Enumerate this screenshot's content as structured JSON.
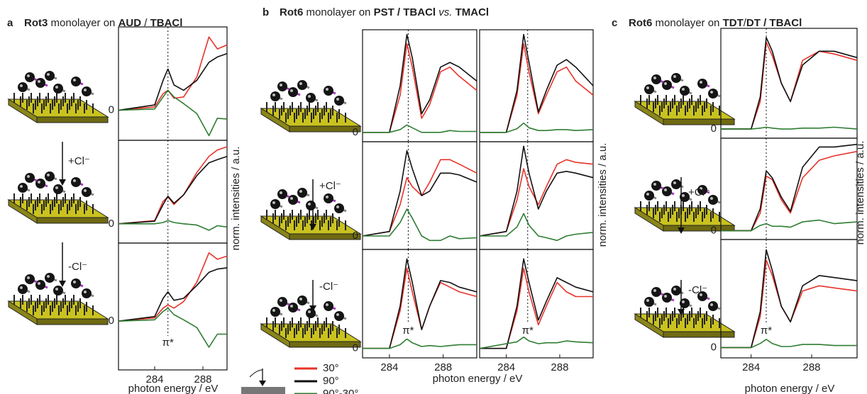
{
  "panels": [
    {
      "label": "a",
      "title": [
        {
          "text": "Rot3",
          "bold": true
        },
        {
          "text": " monolayer on ",
          "bold": false
        },
        {
          "text": "AUD",
          "bold": true
        },
        {
          "text": " / ",
          "bold": false
        },
        {
          "text": "TBACl",
          "bold": true
        }
      ],
      "xlabel": "photon energy / eV",
      "ylabel": "norm. intensities / a.u.",
      "steps": [
        "+Cl⁻",
        "-Cl⁻"
      ]
    },
    {
      "label": "b",
      "title": [
        {
          "text": "Rot6",
          "bold": true
        },
        {
          "text": " monolayer on ",
          "bold": false
        },
        {
          "text": "PST / TBACl",
          "bold": true
        },
        {
          "text": " vs. ",
          "bold": false
        },
        {
          "text": "TMACl",
          "bold": true
        }
      ],
      "xlabel": "photon energy / eV",
      "ylabel": "norm. intensities / a.u.",
      "steps": [
        "+Cl⁻",
        "-Cl⁻"
      ]
    },
    {
      "label": "c",
      "title": [
        {
          "text": "Rot6",
          "bold": true
        },
        {
          "text": " monolayer on ",
          "bold": false
        },
        {
          "text": "TDT",
          "bold": true
        },
        {
          "text": "/",
          "bold": false
        },
        {
          "text": "DT / TBACl",
          "bold": true
        }
      ],
      "xlabel": "photon energy / eV",
      "ylabel": "norm. intensities / a.u.",
      "steps": [
        "+Cl⁻",
        "-Cl⁻"
      ]
    }
  ],
  "legend": [
    {
      "label": "30°",
      "color": "#e8322a"
    },
    {
      "label": "90°",
      "color": "#111111"
    },
    {
      "label": "90°-30°",
      "color": "#2e7d32"
    }
  ],
  "chart_data": [
    {
      "type": "line",
      "x": [
        281,
        284,
        284.7,
        285.1,
        285.6,
        286.4,
        287.5,
        288.5,
        289.2,
        290
      ],
      "xlim": [
        281,
        290
      ],
      "ylim": [
        -0.45,
        1.25
      ],
      "yticks": [
        0
      ],
      "marker_x": 285.1,
      "series": [
        {
          "color": "#e8322a",
          "values": [
            0,
            0.05,
            0.25,
            0.3,
            0.18,
            0.2,
            0.5,
            1.1,
            0.92,
            0.98
          ]
        },
        {
          "color": "#111111",
          "values": [
            0,
            0.08,
            0.45,
            0.62,
            0.38,
            0.3,
            0.45,
            0.72,
            0.8,
            0.85
          ]
        },
        {
          "color": "#2e7d32",
          "values": [
            0,
            0.02,
            0.2,
            0.3,
            0.2,
            0.1,
            -0.05,
            -0.38,
            -0.12,
            -0.13
          ]
        }
      ]
    },
    {
      "type": "line",
      "x": [
        281,
        284,
        284.7,
        285.1,
        285.6,
        286.4,
        287.5,
        288.5,
        289.2,
        290
      ],
      "xlim": [
        281,
        290
      ],
      "ylim": [
        -0.3,
        1.3
      ],
      "yticks": [
        0
      ],
      "marker_x": 285.1,
      "series": [
        {
          "color": "#e8322a",
          "values": [
            0,
            0.05,
            0.35,
            0.42,
            0.3,
            0.45,
            0.8,
            1.05,
            1.15,
            1.2
          ]
        },
        {
          "color": "#111111",
          "values": [
            0,
            0.04,
            0.3,
            0.43,
            0.32,
            0.45,
            0.75,
            0.95,
            1.0,
            1.05
          ]
        },
        {
          "color": "#2e7d32",
          "values": [
            0,
            0,
            0.02,
            0.05,
            0.02,
            0,
            -0.02,
            -0.1,
            -0.03,
            -0.05
          ]
        }
      ]
    },
    {
      "type": "line",
      "x": [
        281,
        284,
        284.7,
        285.1,
        285.6,
        286.4,
        287.5,
        288.5,
        289.2,
        290
      ],
      "xlim": [
        281,
        290
      ],
      "ylim": [
        -0.75,
        1.2
      ],
      "yticks": [
        0
      ],
      "xticks": [
        284,
        288
      ],
      "marker_x": 285.1,
      "annotation": "π*",
      "series": [
        {
          "color": "#e8322a",
          "values": [
            0,
            0.05,
            0.2,
            0.25,
            0.2,
            0.3,
            0.6,
            1.05,
            0.95,
            1.0
          ]
        },
        {
          "color": "#111111",
          "values": [
            0,
            0.07,
            0.35,
            0.45,
            0.32,
            0.35,
            0.55,
            0.75,
            0.8,
            0.82
          ]
        },
        {
          "color": "#2e7d32",
          "values": [
            0,
            0.02,
            0.15,
            0.2,
            0.1,
            0.02,
            -0.1,
            -0.4,
            -0.2,
            -0.2
          ]
        }
      ]
    },
    {
      "type": "line",
      "x": [
        282,
        284,
        284.8,
        285.3,
        285.7,
        286.4,
        287,
        287.8,
        288.5,
        289.2,
        290.5
      ],
      "xlim": [
        282,
        290.5
      ],
      "ylim": [
        -0.1,
        1.1
      ],
      "yticks": [
        0
      ],
      "marker_x": 285.4,
      "series": [
        {
          "color": "#e8322a",
          "values": [
            0,
            0,
            0.4,
            0.95,
            0.7,
            0.15,
            0.3,
            0.65,
            0.7,
            0.6,
            0.45
          ]
        },
        {
          "color": "#111111",
          "values": [
            0,
            0,
            0.5,
            1.05,
            0.8,
            0.2,
            0.35,
            0.7,
            0.75,
            0.7,
            0.55
          ]
        },
        {
          "color": "#2e7d32",
          "values": [
            0,
            0,
            0.03,
            0.08,
            0.05,
            0,
            0,
            0,
            0.02,
            0.01,
            0.01
          ]
        }
      ]
    },
    {
      "type": "line",
      "x": [
        282,
        284,
        284.8,
        285.3,
        285.7,
        286.4,
        287,
        287.8,
        288.5,
        289.2,
        290.5
      ],
      "xlim": [
        282,
        290.5
      ],
      "ylim": [
        -0.1,
        1.1
      ],
      "marker_x": 285.6,
      "series": [
        {
          "color": "#e8322a",
          "values": [
            0,
            0,
            0.4,
            0.95,
            0.65,
            0.2,
            0.4,
            0.65,
            0.7,
            0.55,
            0.4
          ]
        },
        {
          "color": "#111111",
          "values": [
            0,
            0,
            0.45,
            1.05,
            0.75,
            0.22,
            0.45,
            0.72,
            0.78,
            0.7,
            0.5
          ]
        },
        {
          "color": "#2e7d32",
          "values": [
            0,
            0,
            0.04,
            0.1,
            0.05,
            0.02,
            0.02,
            0.03,
            0.03,
            0.02,
            0.03
          ]
        }
      ]
    },
    {
      "type": "line",
      "x": [
        282,
        284,
        284.8,
        285.3,
        285.7,
        286.4,
        287,
        287.8,
        288.5,
        289.2,
        290.5
      ],
      "xlim": [
        282,
        290.5
      ],
      "ylim": [
        -0.15,
        1.05
      ],
      "yticks": [
        0
      ],
      "marker_x": 285.4,
      "series": [
        {
          "color": "#e8322a",
          "values": [
            0,
            0.05,
            0.35,
            0.65,
            0.55,
            0.45,
            0.6,
            0.85,
            0.85,
            0.8,
            0.7
          ]
        },
        {
          "color": "#111111",
          "values": [
            0,
            0.05,
            0.5,
            0.95,
            0.75,
            0.45,
            0.5,
            0.7,
            0.7,
            0.68,
            0.6
          ]
        },
        {
          "color": "#2e7d32",
          "values": [
            0,
            0,
            0.15,
            0.3,
            0.2,
            0,
            -0.05,
            -0.05,
            0,
            -0.03,
            -0.02
          ]
        }
      ]
    },
    {
      "type": "line",
      "x": [
        282,
        284,
        284.8,
        285.3,
        285.7,
        286.4,
        287,
        287.8,
        288.5,
        289.2,
        290.5
      ],
      "xlim": [
        282,
        290.5
      ],
      "ylim": [
        -0.15,
        1.05
      ],
      "marker_x": 285.6,
      "series": [
        {
          "color": "#e8322a",
          "values": [
            0,
            0.05,
            0.4,
            0.75,
            0.55,
            0.35,
            0.55,
            0.8,
            0.85,
            0.82,
            0.8
          ]
        },
        {
          "color": "#111111",
          "values": [
            0,
            0.05,
            0.5,
            1.0,
            0.7,
            0.3,
            0.5,
            0.7,
            0.72,
            0.7,
            0.65
          ]
        },
        {
          "color": "#2e7d32",
          "values": [
            0,
            0,
            0.1,
            0.25,
            0.12,
            0,
            -0.02,
            -0.05,
            0,
            0.02,
            0.04
          ]
        }
      ]
    },
    {
      "type": "line",
      "x": [
        282,
        284,
        284.8,
        285.3,
        285.7,
        286.4,
        287,
        287.8,
        288.5,
        289.2,
        290.5
      ],
      "xlim": [
        282,
        290.5
      ],
      "ylim": [
        -0.1,
        1.05
      ],
      "yticks": [
        0
      ],
      "xticks": [
        284,
        288
      ],
      "marker_x": 285.4,
      "annotation": "π*",
      "series": [
        {
          "color": "#e8322a",
          "values": [
            0,
            0,
            0.4,
            0.85,
            0.6,
            0.2,
            0.45,
            0.7,
            0.65,
            0.6,
            0.55
          ]
        },
        {
          "color": "#111111",
          "values": [
            0,
            0,
            0.45,
            0.95,
            0.7,
            0.2,
            0.45,
            0.72,
            0.7,
            0.65,
            0.6
          ]
        },
        {
          "color": "#2e7d32",
          "values": [
            0,
            0,
            0.04,
            0.1,
            0.06,
            0.02,
            0.03,
            0.02,
            0.03,
            0.04,
            0.04
          ]
        }
      ]
    },
    {
      "type": "line",
      "x": [
        282,
        284,
        284.8,
        285.3,
        285.7,
        286.4,
        287,
        287.8,
        288.5,
        289.2,
        290.5
      ],
      "xlim": [
        282,
        290.5
      ],
      "ylim": [
        -0.1,
        1.05
      ],
      "xticks": [
        284,
        288
      ],
      "marker_x": 285.6,
      "annotation": "π*",
      "series": [
        {
          "color": "#e8322a",
          "values": [
            0,
            0,
            0.4,
            0.85,
            0.6,
            0.25,
            0.45,
            0.7,
            0.6,
            0.55,
            0.55
          ]
        },
        {
          "color": "#111111",
          "values": [
            0,
            0,
            0.45,
            0.95,
            0.7,
            0.3,
            0.5,
            0.75,
            0.7,
            0.65,
            0.6
          ]
        },
        {
          "color": "#2e7d32",
          "values": [
            0,
            0.05,
            0.07,
            0.12,
            0.08,
            0.05,
            0.06,
            0.06,
            0.08,
            0.07,
            0.06
          ]
        }
      ]
    },
    {
      "type": "line",
      "x": [
        282,
        284,
        284.6,
        285,
        285.4,
        286,
        286.6,
        287.4,
        288.5,
        289.5,
        291
      ],
      "xlim": [
        282,
        291
      ],
      "ylim": [
        -0.1,
        1.1
      ],
      "yticks": [
        0
      ],
      "marker_x": 285,
      "series": [
        {
          "color": "#e8322a",
          "values": [
            0,
            0,
            0.3,
            0.95,
            0.8,
            0.5,
            0.3,
            0.75,
            0.85,
            0.82,
            0.75
          ]
        },
        {
          "color": "#111111",
          "values": [
            0,
            0,
            0.35,
            1.0,
            0.85,
            0.5,
            0.3,
            0.7,
            0.85,
            0.85,
            0.78
          ]
        },
        {
          "color": "#2e7d32",
          "values": [
            0,
            0,
            0.01,
            0.02,
            0.01,
            0,
            0,
            0.01,
            0.01,
            0.02,
            0
          ]
        }
      ]
    },
    {
      "type": "line",
      "x": [
        282,
        284,
        284.6,
        285,
        285.4,
        286,
        286.6,
        287.4,
        288.5,
        289.5,
        291
      ],
      "xlim": [
        282,
        291
      ],
      "ylim": [
        -0.1,
        1.05
      ],
      "yticks": [
        0
      ],
      "marker_x": 285,
      "series": [
        {
          "color": "#e8322a",
          "values": [
            0,
            0,
            0.2,
            0.62,
            0.58,
            0.35,
            0.2,
            0.6,
            0.8,
            0.85,
            0.9
          ]
        },
        {
          "color": "#111111",
          "values": [
            0,
            0,
            0.25,
            0.68,
            0.6,
            0.38,
            0.22,
            0.72,
            0.95,
            0.95,
            0.98
          ]
        },
        {
          "color": "#2e7d32",
          "values": [
            0,
            0,
            0.06,
            0.08,
            0.05,
            0.05,
            0.04,
            0.1,
            0.12,
            0.08,
            0.1
          ]
        }
      ]
    },
    {
      "type": "line",
      "x": [
        282,
        284,
        284.6,
        285,
        285.4,
        286,
        286.6,
        287.4,
        288.5,
        289.5,
        291
      ],
      "xlim": [
        282,
        291
      ],
      "ylim": [
        -0.1,
        1.05
      ],
      "yticks": [
        0
      ],
      "xticks": [
        284,
        288
      ],
      "marker_x": 285,
      "annotation": "π*",
      "series": [
        {
          "color": "#e8322a",
          "values": [
            0,
            0,
            0.3,
            0.85,
            0.7,
            0.4,
            0.25,
            0.55,
            0.6,
            0.58,
            0.55
          ]
        },
        {
          "color": "#111111",
          "values": [
            0,
            0,
            0.35,
            0.95,
            0.75,
            0.4,
            0.25,
            0.6,
            0.7,
            0.68,
            0.65
          ]
        },
        {
          "color": "#2e7d32",
          "values": [
            0,
            0,
            0.04,
            0.08,
            0.04,
            0.01,
            0.01,
            0.03,
            0.03,
            0.02,
            0.02
          ]
        }
      ]
    }
  ]
}
